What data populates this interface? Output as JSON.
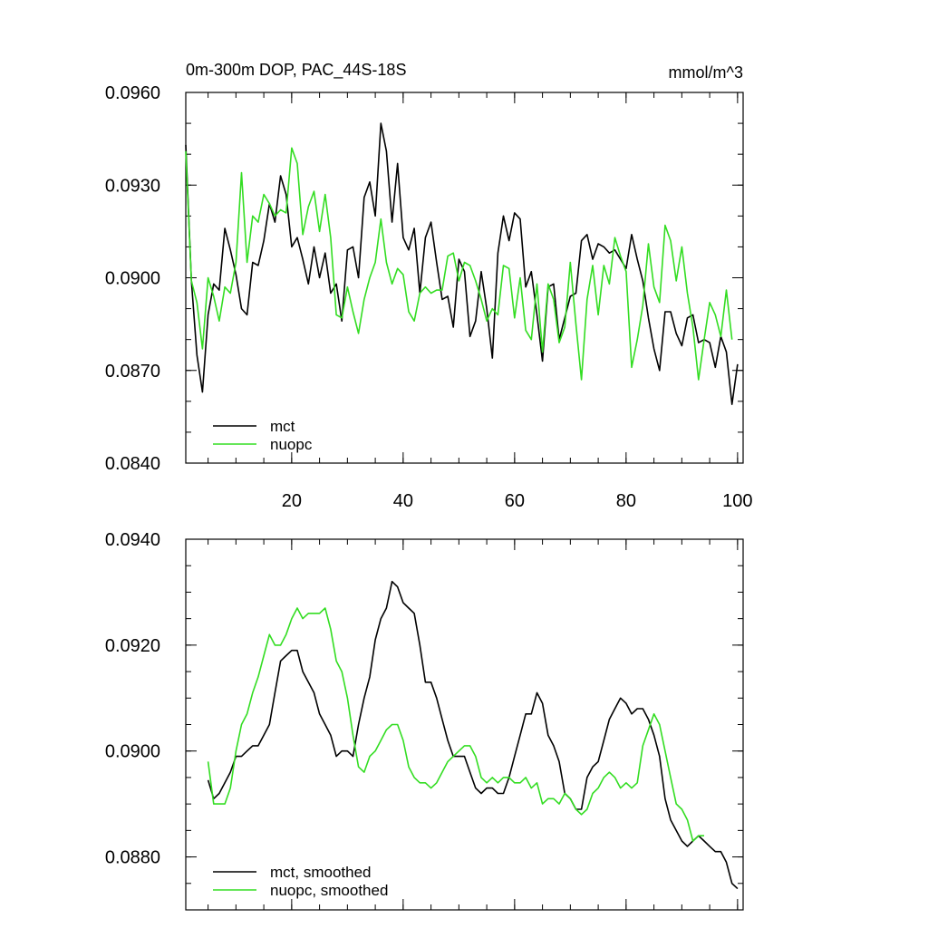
{
  "chart_data": [
    {
      "type": "line",
      "title": "0m-300m DOP, PAC_44S-18S",
      "units": "mmol/m^3",
      "xlim": [
        1,
        101
      ],
      "ylim": [
        0.084,
        0.096
      ],
      "yticks": [
        "0.0960",
        "0.0930",
        "0.0900",
        "0.0870",
        "0.0840"
      ],
      "ytick_values": [
        0.096,
        0.093,
        0.09,
        0.087,
        0.084
      ],
      "xticks": [
        "20",
        "40",
        "60",
        "80",
        "100"
      ],
      "xtick_values": [
        20,
        40,
        60,
        80,
        100
      ],
      "legend_position": "bottom-left",
      "series": [
        {
          "name": "mct",
          "color": "#000000",
          "x_start": 1,
          "values": [
            0.0943,
            0.0899,
            0.0875,
            0.0863,
            0.0888,
            0.0898,
            0.0896,
            0.0916,
            0.0909,
            0.0901,
            0.089,
            0.0888,
            0.0905,
            0.0904,
            0.0912,
            0.0924,
            0.0918,
            0.0933,
            0.0927,
            0.091,
            0.0913,
            0.0906,
            0.0898,
            0.091,
            0.09,
            0.0908,
            0.0895,
            0.0898,
            0.0886,
            0.0909,
            0.091,
            0.09,
            0.0926,
            0.0931,
            0.092,
            0.095,
            0.0941,
            0.0918,
            0.0937,
            0.0913,
            0.0909,
            0.0916,
            0.0895,
            0.0913,
            0.0918,
            0.0905,
            0.0893,
            0.0894,
            0.0884,
            0.0906,
            0.0902,
            0.0881,
            0.0886,
            0.0902,
            0.089,
            0.0874,
            0.0908,
            0.092,
            0.0912,
            0.0921,
            0.0919,
            0.0897,
            0.0902,
            0.0888,
            0.0873,
            0.0897,
            0.0898,
            0.088,
            0.0887,
            0.0894,
            0.0895,
            0.0912,
            0.0914,
            0.0906,
            0.0911,
            0.091,
            0.0908,
            0.0909,
            0.0906,
            0.0903,
            0.0914,
            0.0906,
            0.0899,
            0.0887,
            0.0877,
            0.087,
            0.0889,
            0.0889,
            0.0882,
            0.0878,
            0.0887,
            0.0888,
            0.0879,
            0.088,
            0.0879,
            0.0871,
            0.0881,
            0.0876,
            0.0859,
            0.0872
          ]
        },
        {
          "name": "nuopc",
          "color": "#33dd22",
          "x_start": 1,
          "values": [
            0.0941,
            0.0899,
            0.0892,
            0.0877,
            0.09,
            0.0894,
            0.0886,
            0.0897,
            0.0895,
            0.0905,
            0.0934,
            0.0905,
            0.092,
            0.0918,
            0.0927,
            0.0924,
            0.092,
            0.0922,
            0.0921,
            0.0942,
            0.0937,
            0.0914,
            0.0923,
            0.0928,
            0.0915,
            0.0927,
            0.0913,
            0.0888,
            0.0887,
            0.0897,
            0.0889,
            0.0882,
            0.0893,
            0.09,
            0.0905,
            0.0919,
            0.0905,
            0.0898,
            0.0903,
            0.0901,
            0.0889,
            0.0886,
            0.0895,
            0.0897,
            0.0895,
            0.0896,
            0.0896,
            0.0907,
            0.0908,
            0.0899,
            0.0905,
            0.0904,
            0.0899,
            0.0893,
            0.0886,
            0.089,
            0.0888,
            0.0904,
            0.0903,
            0.0887,
            0.09,
            0.0883,
            0.088,
            0.0898,
            0.0876,
            0.0898,
            0.0893,
            0.0879,
            0.0884,
            0.0905,
            0.0885,
            0.0867,
            0.0893,
            0.0904,
            0.0888,
            0.0904,
            0.0898,
            0.0913,
            0.0907,
            0.0902,
            0.0871,
            0.088,
            0.0891,
            0.0911,
            0.0897,
            0.0892,
            0.0917,
            0.0912,
            0.0899,
            0.091,
            0.0895,
            0.0884,
            0.0867,
            0.088,
            0.0892,
            0.0888,
            0.0881,
            0.0896,
            0.088
          ]
        }
      ]
    },
    {
      "type": "line",
      "xlim": [
        1,
        101
      ],
      "ylim": [
        0.087,
        0.094
      ],
      "yticks": [
        "0.0940",
        "0.0920",
        "0.0900",
        "0.0880"
      ],
      "ytick_values": [
        0.094,
        0.092,
        0.09,
        0.088
      ],
      "xtick_values": [
        20,
        40,
        60,
        80,
        100
      ],
      "legend_position": "bottom-left",
      "series": [
        {
          "name": "mct, smoothed",
          "color": "#000000",
          "x_start": 5,
          "values": [
            0.08945,
            0.0891,
            0.0892,
            0.0894,
            0.0896,
            0.0899,
            0.0899,
            0.09,
            0.0901,
            0.0901,
            0.0903,
            0.0905,
            0.0911,
            0.0917,
            0.0918,
            0.0919,
            0.0919,
            0.0915,
            0.0913,
            0.0911,
            0.0907,
            0.0905,
            0.0903,
            0.0899,
            0.09,
            0.09,
            0.0899,
            0.0905,
            0.091,
            0.0914,
            0.0921,
            0.0925,
            0.0927,
            0.0932,
            0.0931,
            0.0928,
            0.0927,
            0.0926,
            0.092,
            0.0913,
            0.0913,
            0.091,
            0.0906,
            0.0902,
            0.0899,
            0.0899,
            0.0899,
            0.0896,
            0.0893,
            0.0892,
            0.0893,
            0.0893,
            0.0892,
            0.0892,
            0.0895,
            0.0899,
            0.0903,
            0.0907,
            0.0907,
            0.0911,
            0.0909,
            0.0903,
            0.0901,
            0.0898,
            0.0892,
            0.0891,
            0.0889,
            0.0889,
            0.0895,
            0.0897,
            0.0898,
            0.0902,
            0.0906,
            0.0908,
            0.091,
            0.0909,
            0.0907,
            0.0908,
            0.0908,
            0.0906,
            0.0903,
            0.0899,
            0.0891,
            0.0887,
            0.0885,
            0.0883,
            0.0882,
            0.0883,
            0.0884,
            0.0883,
            0.0882,
            0.0881,
            0.0881,
            0.0879,
            0.0875,
            0.0874
          ]
        },
        {
          "name": "nuopc, smoothed",
          "color": "#33dd22",
          "x_start": 5,
          "values": [
            0.0898,
            0.089,
            0.089,
            0.089,
            0.0893,
            0.09,
            0.0905,
            0.0907,
            0.0911,
            0.0914,
            0.0918,
            0.0922,
            0.092,
            0.092,
            0.0922,
            0.0925,
            0.0927,
            0.0925,
            0.0926,
            0.0926,
            0.0926,
            0.0927,
            0.0923,
            0.0917,
            0.0915,
            0.091,
            0.0903,
            0.0897,
            0.0896,
            0.0899,
            0.09,
            0.0902,
            0.0904,
            0.0905,
            0.0905,
            0.0902,
            0.0897,
            0.0895,
            0.0894,
            0.0894,
            0.0893,
            0.0894,
            0.0896,
            0.0898,
            0.0899,
            0.09,
            0.0901,
            0.0901,
            0.0899,
            0.0895,
            0.0894,
            0.0895,
            0.0894,
            0.0895,
            0.0895,
            0.0894,
            0.0894,
            0.0895,
            0.0893,
            0.0894,
            0.089,
            0.0891,
            0.0891,
            0.089,
            0.0892,
            0.0891,
            0.0889,
            0.0888,
            0.0889,
            0.0892,
            0.0893,
            0.0895,
            0.0896,
            0.0895,
            0.0893,
            0.0894,
            0.0893,
            0.0894,
            0.0901,
            0.0904,
            0.0907,
            0.0905,
            0.09,
            0.0895,
            0.089,
            0.0889,
            0.0887,
            0.0883,
            0.0884,
            0.0884
          ]
        }
      ]
    }
  ]
}
